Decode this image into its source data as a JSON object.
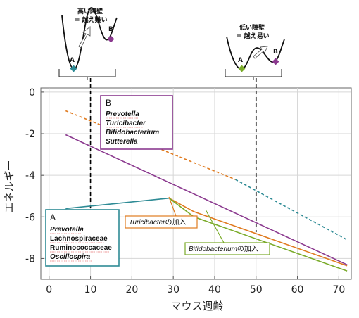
{
  "chart_data": {
    "type": "line",
    "xlabel": "マウス週齢",
    "ylabel": "エネルギー",
    "xlim": [
      -2,
      73
    ],
    "ylim": [
      -9,
      0.2
    ],
    "xticks": [
      0,
      10,
      20,
      30,
      40,
      50,
      60,
      70
    ],
    "yticks": [
      0,
      -2,
      -4,
      -6,
      -8
    ],
    "grid": true,
    "series": [
      {
        "key": "A_state",
        "color": "#2e8b95",
        "style": "solid",
        "points": [
          [
            4,
            -5.6
          ],
          [
            29,
            -5.1
          ]
        ]
      },
      {
        "key": "A_state_projection",
        "color": "#2e8b95",
        "style": "dashed",
        "points": [
          [
            45,
            -4.2
          ],
          [
            72,
            -7.1
          ]
        ]
      },
      {
        "key": "B_state",
        "color": "#8b3a8f",
        "style": "solid",
        "points": [
          [
            4,
            -2.05
          ],
          [
            72,
            -8.3
          ]
        ]
      },
      {
        "key": "B_state_projection",
        "color": "#e07b20",
        "style": "dashed",
        "points": [
          [
            4,
            -0.9
          ],
          [
            45,
            -4.2
          ]
        ]
      },
      {
        "key": "turicibacter_added",
        "color": "#e07b20",
        "style": "solid",
        "points": [
          [
            29,
            -5.1
          ],
          [
            35,
            -5.75
          ],
          [
            72,
            -8.35
          ]
        ]
      },
      {
        "key": "bifidobacterium_added",
        "color": "#7aab2a",
        "style": "solid",
        "points": [
          [
            29,
            -5.1
          ],
          [
            35,
            -6.0
          ],
          [
            72,
            -8.6
          ]
        ]
      }
    ],
    "dashed_markers": [
      {
        "x": 10,
        "color": "#000000"
      },
      {
        "x": 50,
        "color": "#000000"
      }
    ],
    "box_a": {
      "title": "A",
      "items": [
        "Prevotella",
        "Lachnospiraceae",
        "Ruminococcaceae",
        "Oscillospira"
      ],
      "italic": [
        true,
        false,
        false,
        true
      ]
    },
    "box_b": {
      "title": "B",
      "items": [
        "Prevotella",
        "Turicibacter",
        "Bifidobacterium",
        "Sutterella"
      ]
    },
    "callouts": {
      "turicibacter": {
        "italic": "Turicibacter",
        "suffix": "の加入",
        "color": "#e07b20"
      },
      "bifidobacterium": {
        "italic": "Bifidobacterium",
        "suffix": "の加入",
        "color": "#7aab2a"
      }
    },
    "inset_high": {
      "line1": "高い障壁",
      "line2": "= 越え難い",
      "point_a": "A",
      "point_b": "B"
    },
    "inset_low": {
      "line1": "低い障壁",
      "line2": "= 越え易い",
      "point_a": "A",
      "point_b": "B"
    }
  }
}
